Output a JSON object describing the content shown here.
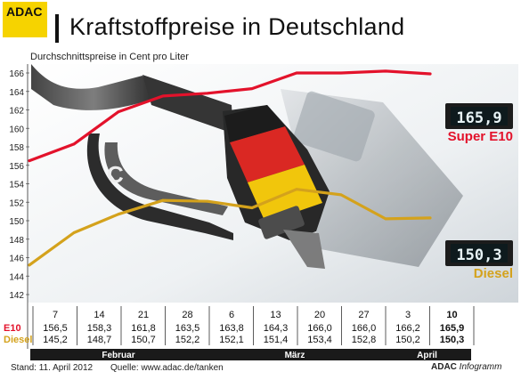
{
  "logo": "ADAC",
  "title": "Kraftstoffpreise in Deutschland",
  "subtitle": "Durchschnittspreise in Cent pro Liter",
  "display": {
    "e10": "165,9",
    "diesel": "150,3"
  },
  "footer": {
    "stand": "Stand: 11. April 2012",
    "quelle": "Quelle: www.adac.de/tanken",
    "brand_bold": "ADAC",
    "brand_italic": "Infogramm"
  },
  "colors": {
    "e10": "#e3122b",
    "diesel": "#d4a21c",
    "accent": "#f6d300"
  },
  "chart_data": {
    "type": "line",
    "title": "Kraftstoffpreise in Deutschland",
    "ylabel": "Durchschnittspreise in Cent pro Liter",
    "ylim": [
      142,
      166
    ],
    "yticks": [
      142,
      144,
      146,
      148,
      150,
      152,
      154,
      156,
      158,
      160,
      162,
      164,
      166
    ],
    "categories": [
      "7",
      "14",
      "21",
      "28",
      "6",
      "13",
      "20",
      "27",
      "3",
      "10"
    ],
    "months": [
      {
        "label": "Februar",
        "from": 0,
        "to": 3
      },
      {
        "label": "März",
        "from": 4,
        "to": 7
      },
      {
        "label": "April",
        "from": 8,
        "to": 9
      }
    ],
    "series": [
      {
        "name": "Super E10",
        "key": "E10",
        "color": "#e3122b",
        "values": [
          156.5,
          158.3,
          161.8,
          163.5,
          163.8,
          164.3,
          166.0,
          166.0,
          166.2,
          165.9
        ],
        "labels": [
          "156,5",
          "158,3",
          "161,8",
          "163,5",
          "163,8",
          "164,3",
          "166,0",
          "166,0",
          "166,2",
          "165,9"
        ]
      },
      {
        "name": "Diesel",
        "key": "Diesel",
        "color": "#d4a21c",
        "values": [
          145.2,
          148.7,
          150.7,
          152.2,
          152.1,
          151.4,
          153.4,
          152.8,
          150.2,
          150.3
        ],
        "labels": [
          "145,2",
          "148,7",
          "150,7",
          "152,2",
          "152,1",
          "151,4",
          "153,4",
          "152,8",
          "150,2",
          "150,3"
        ]
      }
    ]
  }
}
